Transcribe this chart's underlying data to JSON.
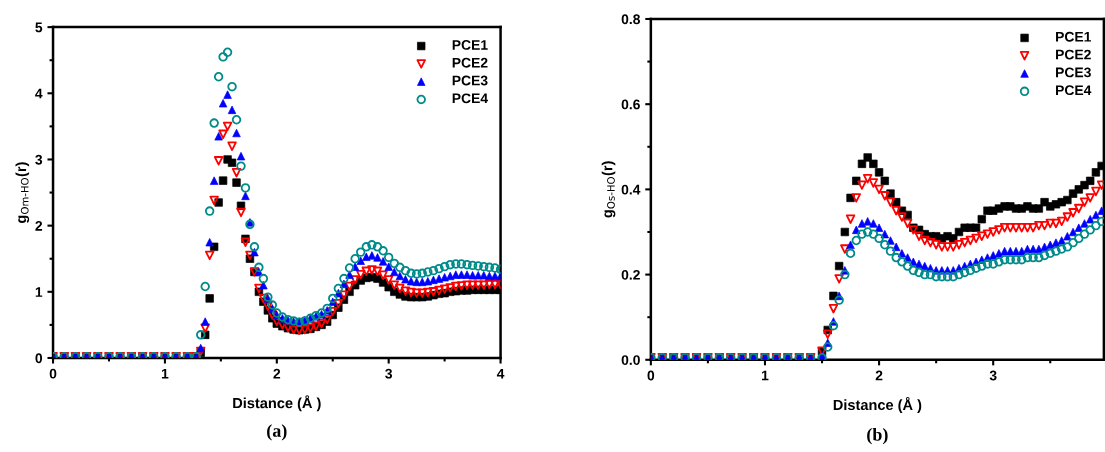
{
  "chart_data": [
    {
      "type": "scatter",
      "xlabel": "Distance (Å )",
      "ylabel": "g$_{Om-HO}$(r)",
      "annotations": [
        "(a)"
      ],
      "xlim": [
        0,
        4
      ],
      "ylim": [
        0,
        5
      ],
      "xticks": [
        0,
        1,
        2,
        3,
        4
      ],
      "yticks": [
        0,
        1,
        2,
        3,
        4,
        5
      ],
      "grid": false,
      "legend": "top right",
      "x": [
        0,
        0.1,
        0.2,
        0.3,
        0.4,
        0.5,
        0.6,
        0.7,
        0.8,
        0.9,
        1.0,
        1.1,
        1.2,
        1.28,
        1.32,
        1.36,
        1.4,
        1.44,
        1.48,
        1.52,
        1.56,
        1.6,
        1.64,
        1.68,
        1.72,
        1.76,
        1.8,
        1.84,
        1.88,
        1.92,
        1.96,
        2.0,
        2.05,
        2.1,
        2.15,
        2.2,
        2.25,
        2.3,
        2.35,
        2.4,
        2.45,
        2.5,
        2.55,
        2.6,
        2.65,
        2.7,
        2.75,
        2.8,
        2.85,
        2.9,
        2.95,
        3.0,
        3.05,
        3.1,
        3.15,
        3.2,
        3.25,
        3.3,
        3.35,
        3.4,
        3.45,
        3.5,
        3.55,
        3.6,
        3.65,
        3.7,
        3.75,
        3.8,
        3.85,
        3.9,
        3.95,
        4.0
      ],
      "series": [
        {
          "name": "PCE1",
          "color": "#000000",
          "marker": "square",
          "values": [
            0.02,
            0.02,
            0.02,
            0.02,
            0.02,
            0.02,
            0.02,
            0.02,
            0.02,
            0.02,
            0.02,
            0.02,
            0.02,
            0.02,
            0.08,
            0.35,
            0.9,
            1.68,
            2.35,
            2.68,
            3.0,
            2.95,
            2.65,
            2.3,
            1.8,
            1.5,
            1.3,
            1.0,
            0.85,
            0.72,
            0.6,
            0.52,
            0.48,
            0.45,
            0.43,
            0.42,
            0.43,
            0.44,
            0.47,
            0.5,
            0.55,
            0.65,
            0.76,
            0.88,
            1.0,
            1.1,
            1.17,
            1.21,
            1.22,
            1.2,
            1.14,
            1.07,
            1.0,
            0.96,
            0.93,
            0.92,
            0.92,
            0.92,
            0.93,
            0.95,
            0.97,
            0.98,
            1.0,
            1.01,
            1.02,
            1.02,
            1.03,
            1.03,
            1.03,
            1.03,
            1.03,
            1.03
          ]
        },
        {
          "name": "PCE2",
          "color": "#ff0000",
          "marker": "triangle_down_open",
          "values": [
            0.02,
            0.02,
            0.02,
            0.02,
            0.02,
            0.02,
            0.02,
            0.02,
            0.02,
            0.02,
            0.02,
            0.02,
            0.02,
            0.02,
            0.1,
            0.45,
            1.55,
            2.38,
            2.98,
            3.38,
            3.5,
            3.2,
            2.8,
            2.2,
            1.75,
            1.55,
            1.3,
            1.05,
            0.9,
            0.78,
            0.65,
            0.55,
            0.5,
            0.46,
            0.43,
            0.42,
            0.43,
            0.45,
            0.48,
            0.52,
            0.58,
            0.7,
            0.82,
            0.95,
            1.08,
            1.18,
            1.26,
            1.31,
            1.33,
            1.31,
            1.25,
            1.18,
            1.1,
            1.05,
            1.01,
            0.99,
            0.98,
            0.98,
            0.99,
            1.0,
            1.02,
            1.04,
            1.06,
            1.08,
            1.09,
            1.1,
            1.1,
            1.1,
            1.1,
            1.11,
            1.11,
            1.11
          ]
        },
        {
          "name": "PCE3",
          "color": "#0000ff",
          "marker": "triangle",
          "values": [
            0.02,
            0.02,
            0.02,
            0.02,
            0.02,
            0.02,
            0.02,
            0.02,
            0.02,
            0.02,
            0.02,
            0.02,
            0.02,
            0.02,
            0.15,
            0.55,
            1.75,
            2.68,
            3.35,
            3.85,
            3.98,
            3.75,
            3.4,
            3.05,
            2.45,
            2.05,
            1.6,
            1.3,
            1.1,
            0.9,
            0.75,
            0.65,
            0.6,
            0.57,
            0.55,
            0.55,
            0.57,
            0.6,
            0.63,
            0.66,
            0.72,
            0.85,
            0.98,
            1.12,
            1.26,
            1.38,
            1.47,
            1.53,
            1.55,
            1.52,
            1.46,
            1.38,
            1.3,
            1.24,
            1.19,
            1.16,
            1.15,
            1.15,
            1.16,
            1.18,
            1.2,
            1.22,
            1.24,
            1.26,
            1.26,
            1.26,
            1.25,
            1.25,
            1.25,
            1.24,
            1.24,
            1.24
          ]
        },
        {
          "name": "PCE4",
          "color": "#008b8b",
          "marker": "circle_open",
          "values": [
            0.02,
            0.02,
            0.02,
            0.02,
            0.02,
            0.02,
            0.02,
            0.02,
            0.02,
            0.02,
            0.02,
            0.02,
            0.02,
            0.02,
            0.35,
            1.08,
            2.22,
            3.55,
            4.25,
            4.55,
            4.62,
            4.1,
            3.6,
            2.9,
            2.57,
            2.02,
            1.68,
            1.37,
            1.2,
            0.92,
            0.8,
            0.68,
            0.62,
            0.58,
            0.56,
            0.54,
            0.56,
            0.6,
            0.64,
            0.68,
            0.75,
            0.9,
            1.05,
            1.2,
            1.36,
            1.5,
            1.6,
            1.68,
            1.71,
            1.68,
            1.62,
            1.52,
            1.43,
            1.37,
            1.32,
            1.28,
            1.27,
            1.28,
            1.3,
            1.32,
            1.35,
            1.38,
            1.41,
            1.42,
            1.42,
            1.41,
            1.4,
            1.39,
            1.38,
            1.37,
            1.36,
            1.34
          ]
        }
      ]
    },
    {
      "type": "scatter",
      "xlabel": "Distance (Å )",
      "ylabel": "g$_{Os-HO}$(r)",
      "annotations": [
        "(b)"
      ],
      "xlim": [
        0,
        3.97
      ],
      "ylim": [
        0,
        0.8
      ],
      "xticks": [
        0,
        1,
        2,
        3
      ],
      "yticks": [
        {
          "value": 0,
          "label": "0.0"
        },
        {
          "value": 0.2,
          "label": "0.2"
        },
        {
          "value": 0.4,
          "label": "0.4"
        },
        {
          "value": 0.6,
          "label": "0.6"
        },
        {
          "value": 0.8,
          "label": "0.8"
        }
      ],
      "grid": false,
      "legend": "top right",
      "x": [
        0,
        0.1,
        0.2,
        0.3,
        0.4,
        0.5,
        0.6,
        0.7,
        0.8,
        0.9,
        1.0,
        1.1,
        1.2,
        1.3,
        1.4,
        1.5,
        1.55,
        1.6,
        1.65,
        1.7,
        1.75,
        1.8,
        1.85,
        1.9,
        1.95,
        2.0,
        2.05,
        2.1,
        2.15,
        2.2,
        2.25,
        2.3,
        2.35,
        2.4,
        2.45,
        2.5,
        2.55,
        2.6,
        2.65,
        2.7,
        2.75,
        2.8,
        2.85,
        2.9,
        2.95,
        3.0,
        3.05,
        3.1,
        3.15,
        3.2,
        3.25,
        3.3,
        3.35,
        3.4,
        3.45,
        3.5,
        3.55,
        3.6,
        3.65,
        3.7,
        3.75,
        3.8,
        3.85,
        3.9,
        3.95
      ],
      "series": [
        {
          "name": "PCE1",
          "color": "#000000",
          "marker": "square",
          "values": [
            0.005,
            0.005,
            0.005,
            0.005,
            0.005,
            0.005,
            0.005,
            0.005,
            0.005,
            0.005,
            0.005,
            0.005,
            0.005,
            0.005,
            0.005,
            0.02,
            0.07,
            0.15,
            0.22,
            0.3,
            0.38,
            0.42,
            0.46,
            0.475,
            0.46,
            0.44,
            0.42,
            0.39,
            0.37,
            0.35,
            0.34,
            0.31,
            0.305,
            0.295,
            0.29,
            0.29,
            0.285,
            0.29,
            0.285,
            0.3,
            0.31,
            0.31,
            0.31,
            0.33,
            0.35,
            0.35,
            0.355,
            0.36,
            0.36,
            0.355,
            0.355,
            0.36,
            0.355,
            0.355,
            0.37,
            0.36,
            0.365,
            0.37,
            0.375,
            0.39,
            0.4,
            0.41,
            0.42,
            0.44,
            0.455
          ]
        },
        {
          "name": "PCE2",
          "color": "#ff0000",
          "marker": "triangle_down_open",
          "values": [
            0.005,
            0.005,
            0.005,
            0.005,
            0.005,
            0.005,
            0.005,
            0.005,
            0.005,
            0.005,
            0.005,
            0.005,
            0.005,
            0.005,
            0.005,
            0.02,
            0.06,
            0.12,
            0.19,
            0.26,
            0.33,
            0.38,
            0.41,
            0.425,
            0.415,
            0.4,
            0.385,
            0.37,
            0.35,
            0.335,
            0.32,
            0.305,
            0.29,
            0.28,
            0.275,
            0.27,
            0.265,
            0.265,
            0.265,
            0.27,
            0.275,
            0.28,
            0.285,
            0.29,
            0.295,
            0.3,
            0.305,
            0.31,
            0.31,
            0.31,
            0.31,
            0.31,
            0.31,
            0.315,
            0.315,
            0.32,
            0.32,
            0.325,
            0.335,
            0.345,
            0.355,
            0.37,
            0.38,
            0.395,
            0.41
          ]
        },
        {
          "name": "PCE3",
          "color": "#0000ff",
          "marker": "triangle",
          "values": [
            0.005,
            0.005,
            0.005,
            0.005,
            0.005,
            0.005,
            0.005,
            0.005,
            0.005,
            0.005,
            0.005,
            0.005,
            0.005,
            0.005,
            0.005,
            0.01,
            0.04,
            0.09,
            0.15,
            0.21,
            0.27,
            0.305,
            0.32,
            0.325,
            0.32,
            0.31,
            0.295,
            0.28,
            0.265,
            0.25,
            0.24,
            0.23,
            0.225,
            0.22,
            0.215,
            0.21,
            0.21,
            0.21,
            0.21,
            0.215,
            0.22,
            0.225,
            0.23,
            0.235,
            0.24,
            0.245,
            0.25,
            0.255,
            0.255,
            0.255,
            0.255,
            0.26,
            0.26,
            0.26,
            0.265,
            0.27,
            0.275,
            0.28,
            0.29,
            0.3,
            0.31,
            0.32,
            0.33,
            0.34,
            0.35
          ]
        },
        {
          "name": "PCE4",
          "color": "#008b8b",
          "marker": "circle_open",
          "values": [
            0.005,
            0.005,
            0.005,
            0.005,
            0.005,
            0.005,
            0.005,
            0.005,
            0.005,
            0.005,
            0.005,
            0.005,
            0.005,
            0.005,
            0.005,
            0.005,
            0.03,
            0.08,
            0.14,
            0.2,
            0.25,
            0.28,
            0.295,
            0.3,
            0.295,
            0.285,
            0.27,
            0.255,
            0.24,
            0.23,
            0.22,
            0.21,
            0.205,
            0.2,
            0.2,
            0.195,
            0.195,
            0.195,
            0.195,
            0.2,
            0.205,
            0.21,
            0.215,
            0.22,
            0.225,
            0.225,
            0.23,
            0.235,
            0.235,
            0.235,
            0.235,
            0.24,
            0.24,
            0.24,
            0.245,
            0.25,
            0.255,
            0.26,
            0.265,
            0.275,
            0.285,
            0.295,
            0.305,
            0.315,
            0.325
          ]
        }
      ]
    }
  ]
}
